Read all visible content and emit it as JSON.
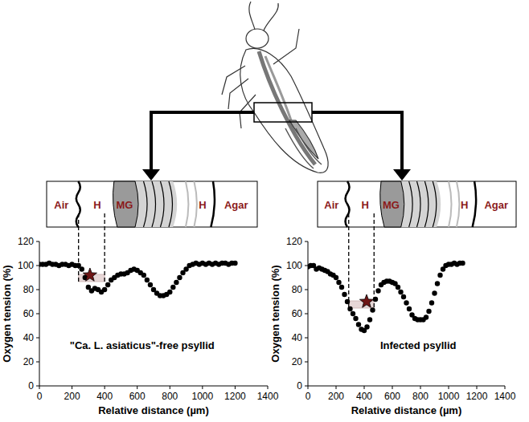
{
  "chart_data": [
    {
      "type": "scatter",
      "marker": "circle",
      "color": "#000000",
      "annotation": "\"Ca. L. asiaticus\"-free psyllid",
      "x_label": "Relative distance (µm)",
      "y_label": "Oxygen tension (%)",
      "xlim": [
        0,
        1400
      ],
      "xticks": [
        0,
        200,
        400,
        600,
        800,
        1000,
        1200,
        1400
      ],
      "ylim": [
        0,
        120
      ],
      "yticks": [
        0,
        20,
        40,
        60,
        80,
        100,
        120
      ],
      "schematic": [
        "Air",
        "H",
        "MG",
        "H",
        "Agar"
      ],
      "star": {
        "x": 310,
        "y": 92
      },
      "h_region": [
        240,
        400
      ],
      "x": [
        0,
        20,
        40,
        60,
        80,
        100,
        120,
        140,
        160,
        180,
        200,
        220,
        240,
        260,
        280,
        300,
        320,
        340,
        360,
        380,
        400,
        420,
        440,
        460,
        480,
        500,
        520,
        540,
        560,
        580,
        600,
        620,
        640,
        660,
        680,
        700,
        720,
        740,
        760,
        780,
        800,
        820,
        840,
        860,
        880,
        900,
        920,
        940,
        960,
        980,
        1000,
        1020,
        1040,
        1060,
        1080,
        1100,
        1120,
        1140,
        1160,
        1180,
        1200
      ],
      "values": [
        101,
        101,
        101,
        102,
        101,
        101,
        100,
        101,
        101,
        100,
        101,
        100,
        100,
        97,
        90,
        82,
        79,
        81,
        80,
        78,
        80,
        84,
        88,
        90,
        92,
        93,
        93,
        94,
        96,
        97,
        96,
        94,
        92,
        88,
        84,
        80,
        77,
        75,
        75,
        76,
        78,
        82,
        86,
        90,
        94,
        97,
        100,
        101,
        102,
        101,
        102,
        101,
        102,
        101,
        102,
        101,
        102,
        102,
        101,
        102,
        102
      ]
    },
    {
      "type": "scatter",
      "marker": "circle",
      "color": "#000000",
      "annotation": "Infected psyllid",
      "x_label": "Relative distance (µm)",
      "y_label": "Oxygen tension (%)",
      "xlim": [
        0,
        1400
      ],
      "xticks": [
        0,
        200,
        400,
        600,
        800,
        1000,
        1200,
        1400
      ],
      "ylim": [
        0,
        120
      ],
      "yticks": [
        0,
        20,
        40,
        60,
        80,
        100,
        120
      ],
      "schematic": [
        "Air",
        "H",
        "MG",
        "H",
        "Agar"
      ],
      "star": {
        "x": 417,
        "y": 70
      },
      "h_region": [
        290,
        470
      ],
      "x": [
        0,
        20,
        40,
        60,
        80,
        100,
        120,
        140,
        160,
        180,
        200,
        220,
        240,
        260,
        280,
        300,
        320,
        340,
        360,
        380,
        400,
        420,
        440,
        460,
        480,
        500,
        520,
        540,
        560,
        580,
        600,
        620,
        640,
        660,
        680,
        700,
        720,
        740,
        760,
        780,
        800,
        820,
        840,
        860,
        880,
        900,
        920,
        940,
        960,
        980,
        1000,
        1020,
        1040,
        1060,
        1080,
        1100
      ],
      "values": [
        99,
        100,
        100,
        97,
        98,
        97,
        96,
        95,
        93,
        92,
        90,
        86,
        82,
        76,
        70,
        64,
        60,
        56,
        51,
        47,
        46,
        49,
        55,
        63,
        72,
        79,
        84,
        86,
        87,
        87,
        86,
        85,
        82,
        78,
        74,
        69,
        64,
        59,
        56,
        55,
        55,
        55,
        57,
        62,
        69,
        77,
        85,
        92,
        97,
        100,
        101,
        101,
        102,
        101,
        102,
        102
      ]
    }
  ]
}
